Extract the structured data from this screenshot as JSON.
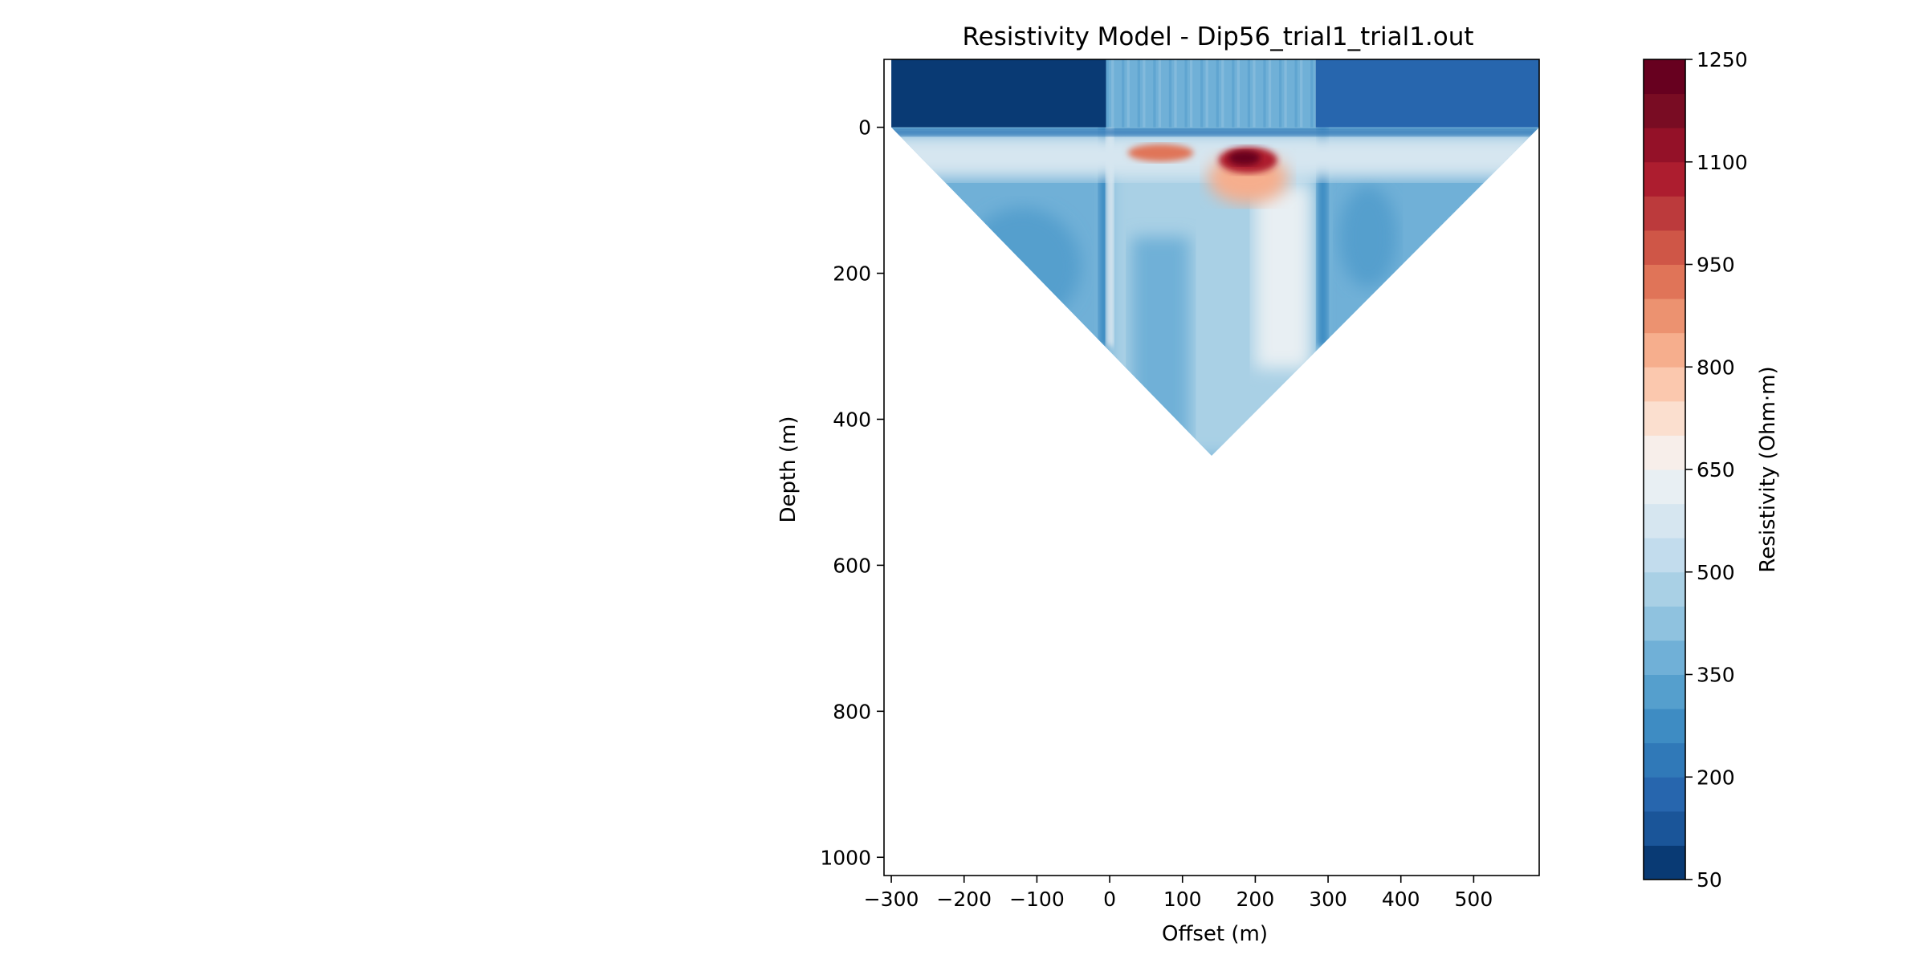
{
  "chart_data": {
    "type": "heatmap",
    "title": "Resistivity Model - Dip56_trial1_trial1.out",
    "xlabel": "Offset (m)",
    "ylabel": "Depth (m)",
    "xlim": [
      -310,
      590
    ],
    "ylim": [
      1025,
      -93
    ],
    "y_inverted": true,
    "xticks": [
      -300,
      -200,
      -100,
      0,
      100,
      200,
      300,
      400,
      500
    ],
    "xtick_labels": [
      "−300",
      "−200",
      "−100",
      "0",
      "100",
      "200",
      "300",
      "400",
      "500"
    ],
    "yticks": [
      0,
      200,
      400,
      600,
      800,
      1000
    ],
    "ytick_labels": [
      "0",
      "200",
      "400",
      "600",
      "800",
      "1000"
    ],
    "grid": false,
    "colormap": "RdBu_r",
    "colorbar": {
      "label": "Resistivity (Ohm·m)",
      "range": [
        50,
        1250
      ],
      "ticks": [
        50,
        200,
        350,
        500,
        650,
        800,
        950,
        1100,
        1250
      ],
      "tick_labels": [
        "50",
        "200",
        "350",
        "500",
        "650",
        "800",
        "950",
        "1100",
        "1250"
      ],
      "levels": 24,
      "level_colors": [
        "#093a74",
        "#1a5599",
        "#2766ae",
        "#3079b8",
        "#3e8cc3",
        "#559fcd",
        "#70b0d7",
        "#8fc2df",
        "#a9d0e5",
        "#c2dced",
        "#d6e6f0",
        "#e8eff3",
        "#f7eeea",
        "#fbdfcf",
        "#fbc8ae",
        "#f6ae8d",
        "#ec9270",
        "#e07458",
        "#cf5647",
        "#bc3a3c",
        "#ad1d2f",
        "#941128",
        "#790c23",
        "#67001f"
      ]
    },
    "model_outline_depth_m": {
      "surface_band_top": -93,
      "surface": 0,
      "left_edge_offset": -300,
      "right_edge_offset": 590,
      "apex": [
        140,
        450
      ]
    },
    "regions": [
      {
        "name": "surface band left",
        "offset": [
          -310,
          -5
        ],
        "depth": [
          -93,
          0
        ],
        "resistivity": 75
      },
      {
        "name": "surface band center",
        "offset": [
          -5,
          283
        ],
        "depth": [
          -93,
          0
        ],
        "resistivity": 360
      },
      {
        "name": "surface band right",
        "offset": [
          283,
          590
        ],
        "depth": [
          -93,
          0
        ],
        "resistivity": 180
      },
      {
        "name": "flank background",
        "resistivity": 370
      },
      {
        "name": "central column",
        "offset": [
          0,
          285
        ],
        "depth": [
          20,
          450
        ],
        "resistivity": 480
      },
      {
        "name": "shallow resistive anomaly",
        "center": [
          190,
          45
        ],
        "resistivity": 1250
      },
      {
        "name": "secondary resistive anomaly",
        "center": [
          70,
          35
        ],
        "resistivity": 900
      }
    ]
  }
}
